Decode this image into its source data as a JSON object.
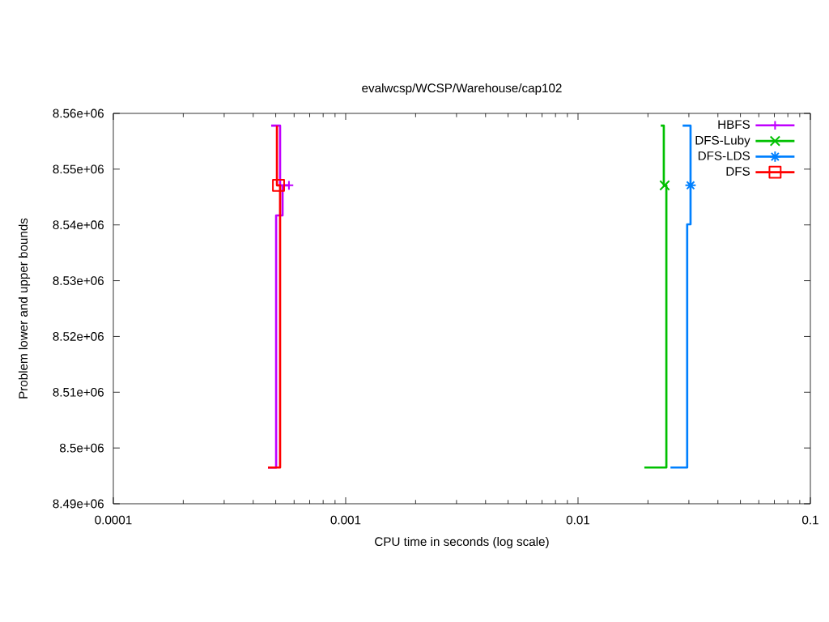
{
  "chart_data": {
    "type": "step",
    "title": "evalwcsp/WCSP/Warehouse/cap102",
    "xlabel": "CPU time in seconds (log scale)",
    "ylabel": "Problem lower and upper bounds",
    "log": "x",
    "legend": "top right",
    "xlim": [
      0.0001,
      0.1
    ],
    "xticks": [
      0.0001,
      {
        "value": 0.0002,
        "label": null
      },
      {
        "value": 0.0003,
        "label": null
      },
      {
        "value": 0.0004,
        "label": null
      },
      {
        "value": 0.0005,
        "label": null
      },
      {
        "value": 0.0006,
        "label": null
      },
      {
        "value": 0.0007,
        "label": null
      },
      {
        "value": 0.0008,
        "label": null
      },
      {
        "value": 0.0009,
        "label": null
      },
      0.001,
      {
        "value": 0.002,
        "label": null
      },
      {
        "value": 0.003,
        "label": null
      },
      {
        "value": 0.004,
        "label": null
      },
      {
        "value": 0.005,
        "label": null
      },
      {
        "value": 0.006,
        "label": null
      },
      {
        "value": 0.007,
        "label": null
      },
      {
        "value": 0.008,
        "label": null
      },
      {
        "value": 0.009,
        "label": null
      },
      0.01,
      {
        "value": 0.02,
        "label": null
      },
      {
        "value": 0.03,
        "label": null
      },
      {
        "value": 0.04,
        "label": null
      },
      {
        "value": 0.05,
        "label": null
      },
      {
        "value": 0.06,
        "label": null
      },
      {
        "value": 0.07,
        "label": null
      },
      {
        "value": 0.08,
        "label": null
      },
      {
        "value": 0.09,
        "label": null
      },
      0.1
    ],
    "ylim": [
      8490000,
      8560000
    ],
    "yticks": [
      {
        "value": 8490000,
        "label": "8.49e+06"
      },
      {
        "value": 8500000,
        "label": "8.5e+06"
      },
      {
        "value": 8510000,
        "label": "8.51e+06"
      },
      {
        "value": 8520000,
        "label": "8.52e+06"
      },
      {
        "value": 8530000,
        "label": "8.53e+06"
      },
      {
        "value": 8540000,
        "label": "8.54e+06"
      },
      {
        "value": 8550000,
        "label": "8.55e+06"
      },
      {
        "value": 8560000,
        "label": "8.56e+06"
      }
    ],
    "series": [
      {
        "color": "#c000ff",
        "x": [
          0.000463,
          0.000502,
          0.000535,
          0.00057,
          0.000522,
          0.000478
        ],
        "values": [
          8496500,
          8541700,
          8547100,
          8547100,
          8557800,
          8557800
        ]
      },
      {
        "name": "HBFS",
        "type": "scatter",
        "color": "#c000ff",
        "marker": "cross",
        "x": [
          0.00057
        ],
        "values": [
          8547100
        ]
      },
      {
        "color": "#00c000",
        "x": [
          0.0193,
          0.024,
          0.0234,
          0.0227
        ],
        "values": [
          8496500,
          8547100,
          8557800,
          8557800
        ]
      },
      {
        "name": "DFS-Luby",
        "type": "scatter",
        "color": "#00c000",
        "marker": "cross",
        "x": [
          0.0236
        ],
        "values": [
          8547100
        ]
      },
      {
        "color": "#0080ff",
        "x": [
          0.025,
          0.0295,
          0.0305,
          0.0305,
          0.0282
        ],
        "values": [
          8496500,
          8540100,
          8547100,
          8557800,
          8557800
        ]
      },
      {
        "name": "DFS-LDS",
        "type": "scatter",
        "color": "#0080ff",
        "marker": "cross",
        "x": [
          0.0305
        ],
        "values": [
          8547100
        ]
      },
      {
        "color": "#ff0000",
        "x": [
          0.000463,
          0.000522,
          0.000506
        ],
        "values": [
          8496500,
          8547100,
          8557800
        ]
      },
      {
        "name": "DFS",
        "type": "scatter",
        "color": "#ff0000",
        "marker": "square",
        "x": [
          0.000514
        ],
        "values": [
          8547100
        ]
      }
    ]
  }
}
